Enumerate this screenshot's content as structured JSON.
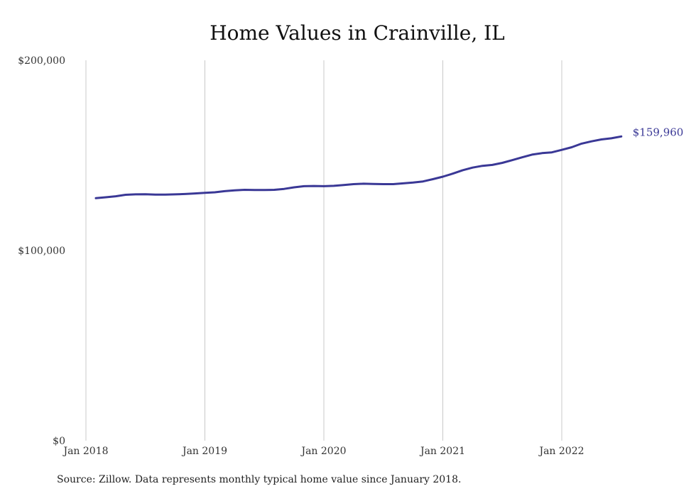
{
  "chart_data": {
    "type": "line",
    "title": "Home Values in Crainville, IL",
    "xlabel": "",
    "ylabel": "",
    "x_ticks": [
      "Jan 2018",
      "Jan 2019",
      "Jan 2020",
      "Jan 2021",
      "Jan 2022"
    ],
    "y_ticks": [
      "$200,000",
      "$100,000",
      "$0"
    ],
    "y_tick_values": [
      200000,
      100000,
      0
    ],
    "ylim": [
      0,
      200000
    ],
    "xlim": [
      "2018-01",
      "2022-07"
    ],
    "grid": "vertical",
    "line_color": "#3a3896",
    "end_label": "$159,960",
    "series": [
      {
        "x": [
          "2018-02",
          "2018-03",
          "2018-04",
          "2018-05",
          "2018-06",
          "2018-07",
          "2018-08",
          "2018-09",
          "2018-10",
          "2018-11",
          "2018-12",
          "2019-01",
          "2019-02",
          "2019-03",
          "2019-04",
          "2019-05",
          "2019-06",
          "2019-07",
          "2019-08",
          "2019-09",
          "2019-10",
          "2019-11",
          "2019-12",
          "2020-01",
          "2020-02",
          "2020-03",
          "2020-04",
          "2020-05",
          "2020-06",
          "2020-07",
          "2020-08",
          "2020-09",
          "2020-10",
          "2020-11",
          "2020-12",
          "2021-01",
          "2021-02",
          "2021-03",
          "2021-04",
          "2021-05",
          "2021-06",
          "2021-07",
          "2021-08",
          "2021-09",
          "2021-10",
          "2021-11",
          "2021-12",
          "2022-01",
          "2022-02",
          "2022-03",
          "2022-04",
          "2022-05",
          "2022-06",
          "2022-07"
        ],
        "values": [
          127500,
          128000,
          128500,
          129300,
          129500,
          129600,
          129400,
          129400,
          129500,
          129700,
          130000,
          130300,
          130600,
          131200,
          131600,
          131900,
          131800,
          131800,
          131900,
          132400,
          133200,
          133800,
          133900,
          133800,
          134000,
          134400,
          134900,
          135100,
          135000,
          134900,
          134900,
          135300,
          135700,
          136300,
          137500,
          138800,
          140400,
          142200,
          143600,
          144500,
          145000,
          146100,
          147500,
          149000,
          150400,
          151200,
          151600,
          152900,
          154300,
          156200,
          157400,
          158400,
          159000,
          159960
        ]
      }
    ]
  },
  "footer": {
    "source": "Source: Zillow. Data represents monthly typical home value since January 2018."
  }
}
